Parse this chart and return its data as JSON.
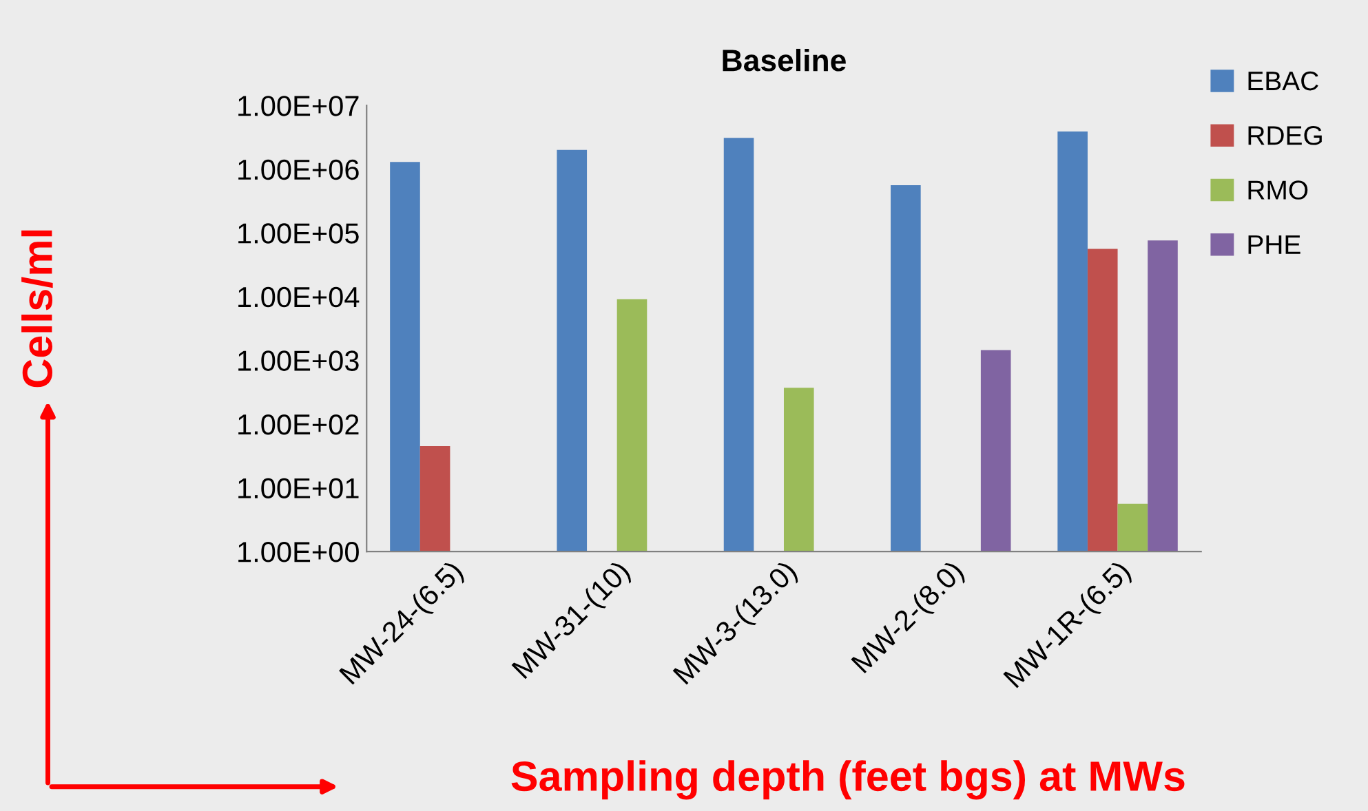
{
  "chart_data": {
    "type": "bar",
    "title": "Baseline",
    "xlabel": "Sampling depth (feet bgs) at MWs",
    "ylabel": "Cells/ml",
    "categories": [
      "MW-24-(6.5)",
      "MW-31-(10)",
      "MW-3-(13.0)",
      "MW-2-(8.0)",
      "MW-1R-(6.5)"
    ],
    "series": [
      {
        "name": "EBAC",
        "color": "#4f81bd",
        "values": [
          1300000,
          2000000,
          3100000,
          560000,
          3900000
        ]
      },
      {
        "name": "RDEG",
        "color": "#c0504d",
        "values": [
          45,
          null,
          null,
          null,
          56000
        ]
      },
      {
        "name": "RMO",
        "color": "#9bbb59",
        "values": [
          null,
          9100,
          370,
          null,
          5.6
        ]
      },
      {
        "name": "PHE",
        "color": "#8064a2",
        "values": [
          null,
          null,
          null,
          1450,
          76000
        ]
      }
    ],
    "log": "y",
    "ylim": [
      1,
      10000000
    ],
    "yticks": [
      {
        "value": 1,
        "label": "1.00E+00"
      },
      {
        "value": 10,
        "label": "1.00E+01"
      },
      {
        "value": 100,
        "label": "1.00E+02"
      },
      {
        "value": 1000,
        "label": "1.00E+03"
      },
      {
        "value": 10000,
        "label": "1.00E+04"
      },
      {
        "value": 100000,
        "label": "1.00E+05"
      },
      {
        "value": 1000000,
        "label": "1.00E+06"
      },
      {
        "value": 10000000,
        "label": "1.00E+07"
      }
    ],
    "grid": false,
    "legend": "top right"
  }
}
